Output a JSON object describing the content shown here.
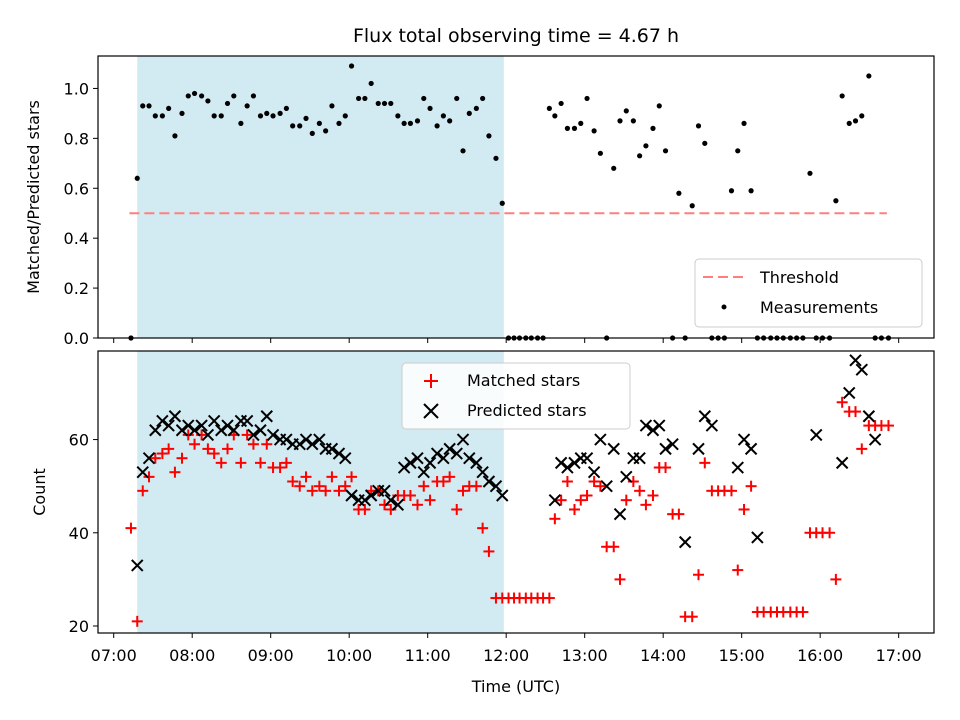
{
  "chart_data": [
    {
      "type": "scatter",
      "title": "Flux total observing time = 4.67 h",
      "xlabel": "",
      "ylabel": "Matched/Predicted stars",
      "ylim": [
        0,
        1.13
      ],
      "yticks": [
        0.0,
        0.2,
        0.4,
        0.6,
        0.8,
        1.0
      ],
      "ytick_labels": [
        "0.0",
        "0.2",
        "0.4",
        "0.6",
        "0.8",
        "1.0"
      ],
      "xlim_hours": [
        6.8,
        17.45
      ],
      "shaded_interval_hours": [
        7.3,
        11.97
      ],
      "threshold": {
        "value": 0.5,
        "x_range_hours": [
          7.2,
          16.85
        ],
        "color": "#ff7f7f"
      },
      "legend": {
        "position": "lower right",
        "entries": [
          "Threshold",
          "Measurements"
        ]
      },
      "series": [
        {
          "name": "Measurements",
          "color": "#000000",
          "x": [
            7.22,
            7.3,
            7.37,
            7.45,
            7.53,
            7.62,
            7.7,
            7.78,
            7.87,
            7.95,
            8.03,
            8.12,
            8.2,
            8.28,
            8.37,
            8.45,
            8.53,
            8.62,
            8.7,
            8.78,
            8.87,
            8.95,
            9.03,
            9.12,
            9.2,
            9.28,
            9.37,
            9.45,
            9.53,
            9.62,
            9.7,
            9.78,
            9.87,
            9.95,
            10.03,
            10.12,
            10.2,
            10.28,
            10.37,
            10.45,
            10.53,
            10.62,
            10.7,
            10.78,
            10.87,
            10.95,
            11.03,
            11.12,
            11.2,
            11.28,
            11.37,
            11.45,
            11.53,
            11.62,
            11.7,
            11.78,
            11.87,
            11.95,
            12.03,
            12.1,
            12.17,
            12.25,
            12.32,
            12.4,
            12.47,
            12.55,
            12.62,
            12.7,
            12.78,
            12.87,
            12.95,
            13.03,
            13.12,
            13.2,
            13.28,
            13.37,
            13.45,
            13.53,
            13.62,
            13.7,
            13.78,
            13.87,
            13.95,
            14.03,
            14.12,
            14.2,
            14.28,
            14.37,
            14.45,
            14.53,
            14.62,
            14.7,
            14.78,
            14.87,
            14.95,
            15.03,
            15.12,
            15.2,
            15.28,
            15.37,
            15.45,
            15.53,
            15.62,
            15.7,
            15.78,
            15.87,
            15.95,
            16.03,
            16.12,
            16.2,
            16.28,
            16.37,
            16.45,
            16.53,
            16.62,
            16.7,
            16.78,
            16.87
          ],
          "y": [
            0.0,
            0.64,
            0.93,
            0.93,
            0.89,
            0.89,
            0.92,
            0.81,
            0.9,
            0.97,
            0.98,
            0.97,
            0.95,
            0.89,
            0.89,
            0.94,
            0.97,
            0.86,
            0.93,
            0.97,
            0.89,
            0.9,
            0.89,
            0.9,
            0.92,
            0.85,
            0.85,
            0.88,
            0.82,
            0.86,
            0.83,
            0.93,
            0.86,
            0.89,
            1.09,
            0.96,
            0.96,
            1.02,
            0.94,
            0.94,
            0.94,
            0.89,
            0.86,
            0.86,
            0.87,
            0.96,
            0.92,
            0.85,
            0.89,
            0.87,
            0.96,
            0.75,
            0.9,
            0.92,
            0.96,
            0.81,
            0.72,
            0.54,
            0.0,
            0.0,
            0.0,
            0.0,
            0.0,
            0.0,
            0.0,
            0.92,
            0.89,
            0.94,
            0.84,
            0.84,
            0.86,
            0.96,
            0.83,
            0.74,
            0.0,
            0.68,
            0.87,
            0.91,
            0.87,
            0.73,
            0.77,
            0.84,
            0.93,
            0.75,
            0.0,
            0.58,
            0.0,
            0.53,
            0.85,
            0.78,
            0.0,
            0.0,
            0.0,
            0.59,
            0.75,
            0.86,
            0.59,
            0.0,
            0.0,
            0.0,
            0.0,
            0.0,
            0.0,
            0.0,
            0.0,
            0.66,
            0.0,
            0.0,
            0.0,
            0.55,
            0.97,
            0.86,
            0.87,
            0.89,
            1.05,
            0.0,
            0.0,
            0.0
          ]
        }
      ]
    },
    {
      "type": "scatter",
      "title": "",
      "xlabel": "Time (UTC)",
      "ylabel": "Count",
      "ylim": [
        18.5,
        79
      ],
      "yticks": [
        20,
        40,
        60
      ],
      "ytick_labels": [
        "20",
        "40",
        "60"
      ],
      "xlim_hours": [
        6.8,
        17.45
      ],
      "xticks_hours": [
        7,
        8,
        9,
        10,
        11,
        12,
        13,
        14,
        15,
        16,
        17
      ],
      "xtick_labels": [
        "07:00",
        "08:00",
        "09:00",
        "10:00",
        "11:00",
        "12:00",
        "13:00",
        "14:00",
        "15:00",
        "16:00",
        "17:00"
      ],
      "shaded_interval_hours": [
        7.3,
        11.97
      ],
      "legend": {
        "position": "upper center",
        "entries": [
          "Matched stars",
          "Predicted stars"
        ]
      },
      "series": [
        {
          "name": "Matched stars",
          "marker": "plus",
          "color": "#ff0000",
          "x": [
            7.22,
            7.3,
            7.37,
            7.45,
            7.53,
            7.62,
            7.7,
            7.78,
            7.87,
            7.95,
            8.03,
            8.12,
            8.2,
            8.28,
            8.37,
            8.45,
            8.53,
            8.62,
            8.7,
            8.78,
            8.87,
            8.95,
            9.03,
            9.12,
            9.2,
            9.28,
            9.37,
            9.45,
            9.53,
            9.62,
            9.7,
            9.78,
            9.87,
            9.95,
            10.03,
            10.12,
            10.2,
            10.28,
            10.37,
            10.45,
            10.53,
            10.62,
            10.7,
            10.78,
            10.87,
            10.95,
            11.03,
            11.12,
            11.2,
            11.28,
            11.37,
            11.45,
            11.53,
            11.62,
            11.7,
            11.78,
            11.87,
            11.95,
            12.03,
            12.1,
            12.17,
            12.25,
            12.32,
            12.4,
            12.47,
            12.55,
            12.62,
            12.7,
            12.78,
            12.87,
            12.95,
            13.03,
            13.12,
            13.2,
            13.28,
            13.37,
            13.45,
            13.53,
            13.62,
            13.7,
            13.78,
            13.87,
            13.95,
            14.03,
            14.12,
            14.2,
            14.28,
            14.37,
            14.45,
            14.53,
            14.62,
            14.7,
            14.78,
            14.87,
            14.95,
            15.03,
            15.12,
            15.2,
            15.28,
            15.37,
            15.45,
            15.53,
            15.62,
            15.7,
            15.78,
            15.87,
            15.95,
            16.03,
            16.12,
            16.2,
            16.28,
            16.37,
            16.45,
            16.53,
            16.62,
            16.7,
            16.78,
            16.87
          ],
          "y": [
            41,
            21,
            49,
            52,
            56,
            57,
            58,
            53,
            56,
            61,
            59,
            61,
            58,
            57,
            55,
            58,
            61,
            55,
            61,
            59,
            55,
            59,
            54,
            54,
            55,
            51,
            50,
            52,
            49,
            50,
            49,
            52,
            49,
            50,
            52,
            45,
            45,
            49,
            49,
            46,
            45,
            48,
            48,
            48,
            46,
            50,
            47,
            51,
            51,
            52,
            45,
            49,
            50,
            50,
            41,
            36,
            26,
            26,
            26,
            26,
            26,
            26,
            26,
            26,
            26,
            26,
            43,
            47,
            51,
            45,
            47,
            48,
            51,
            50,
            37,
            37,
            30,
            47,
            51,
            49,
            46,
            48,
            54,
            54,
            44,
            44,
            22,
            22,
            31,
            55,
            49,
            49,
            49,
            49,
            32,
            45,
            50,
            23,
            23,
            23,
            23,
            23,
            23,
            23,
            23,
            40,
            40,
            40,
            40,
            30,
            68,
            66,
            66,
            58,
            63,
            63,
            63,
            63
          ]
        },
        {
          "name": "Predicted stars",
          "marker": "x",
          "color": "#000000",
          "x": [
            7.3,
            7.37,
            7.45,
            7.53,
            7.62,
            7.7,
            7.78,
            7.87,
            7.95,
            8.03,
            8.12,
            8.2,
            8.28,
            8.37,
            8.45,
            8.53,
            8.62,
            8.7,
            8.78,
            8.87,
            8.95,
            9.03,
            9.12,
            9.2,
            9.28,
            9.37,
            9.45,
            9.53,
            9.62,
            9.7,
            9.78,
            9.87,
            9.95,
            10.03,
            10.12,
            10.2,
            10.28,
            10.37,
            10.45,
            10.53,
            10.62,
            10.7,
            10.78,
            10.87,
            10.95,
            11.03,
            11.12,
            11.2,
            11.28,
            11.37,
            11.45,
            11.53,
            11.62,
            11.7,
            11.78,
            11.87,
            11.95,
            12.62,
            12.7,
            12.78,
            12.87,
            12.95,
            13.03,
            13.12,
            13.2,
            13.28,
            13.37,
            13.45,
            13.53,
            13.62,
            13.7,
            13.78,
            13.87,
            13.95,
            14.03,
            14.12,
            14.28,
            14.45,
            14.53,
            14.62,
            14.95,
            15.03,
            15.12,
            15.2,
            15.95,
            16.28,
            16.37,
            16.45,
            16.53,
            16.62,
            16.7
          ],
          "y": [
            33,
            53,
            56,
            62,
            64,
            63,
            65,
            62,
            63,
            62,
            63,
            61,
            64,
            62,
            63,
            62,
            64,
            64,
            61,
            62,
            65,
            61,
            60,
            60,
            59,
            59,
            60,
            59,
            60,
            58,
            58,
            57,
            56,
            48,
            47,
            47,
            48,
            49,
            49,
            47,
            46,
            54,
            55,
            56,
            53,
            55,
            57,
            56,
            58,
            57,
            60,
            56,
            55,
            53,
            51,
            50,
            48,
            47,
            55,
            54,
            55,
            56,
            56,
            53,
            60,
            50,
            58,
            44,
            52,
            56,
            56,
            63,
            62,
            63,
            58,
            59,
            38,
            58,
            65,
            63,
            54,
            60,
            58,
            39,
            61,
            55,
            70,
            77,
            75,
            65,
            60
          ]
        }
      ]
    }
  ]
}
